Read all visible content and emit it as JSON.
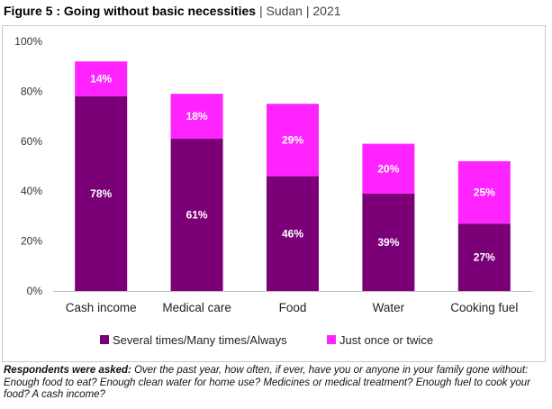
{
  "figure": {
    "title": "Figure 5 : Going without basic necessities",
    "separator1": "|",
    "country": "Sudan",
    "separator2": "|",
    "year": "2021"
  },
  "colors": {
    "series1": "#7b0078",
    "series2": "#ff24ff",
    "axis": "#bfbfbf",
    "text": "#333333"
  },
  "chart_data": {
    "type": "bar",
    "stacked": true,
    "categories": [
      "Cash income",
      "Medical care",
      "Food",
      "Water",
      "Cooking fuel"
    ],
    "series": [
      {
        "name": "Several times/Many times/Always",
        "values": [
          78,
          61,
          46,
          39,
          27
        ]
      },
      {
        "name": "Just once or twice",
        "values": [
          14,
          18,
          29,
          20,
          25
        ]
      }
    ],
    "ylim": [
      0,
      100
    ],
    "yticks": [
      0,
      20,
      40,
      60,
      80,
      100
    ],
    "ytick_labels": [
      "0%",
      "20%",
      "40%",
      "60%",
      "80%",
      "100%"
    ],
    "data_labels": [
      [
        "78%",
        "61%",
        "46%",
        "39%",
        "27%"
      ],
      [
        "14%",
        "18%",
        "29%",
        "20%",
        "25%"
      ]
    ],
    "grid": false,
    "legend": "bottom"
  },
  "note": {
    "question_label": "Respondents were asked:",
    "question_text": "Over the past year, how often, if ever, have you or anyone in your family gone without: Enough food to eat? Enough clean water for home use? Medicines or medical treatment? Enough fuel to cook your food? A cash income?"
  }
}
